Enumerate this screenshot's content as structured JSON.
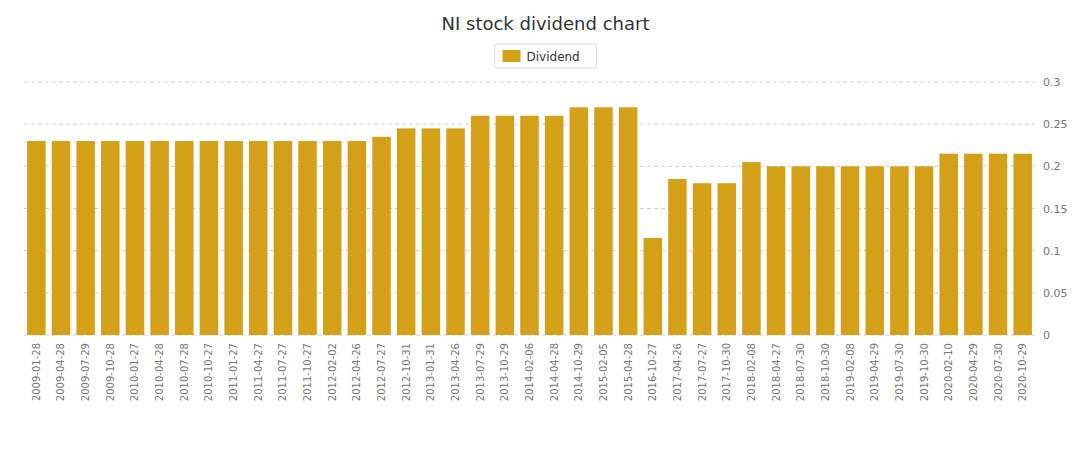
{
  "chart_data": {
    "type": "bar",
    "title": "NI stock dividend chart",
    "categories": [
      "2009-01-28",
      "2009-04-28",
      "2009-07-29",
      "2009-10-28",
      "2010-01-27",
      "2010-04-28",
      "2010-07-28",
      "2010-10-27",
      "2011-01-27",
      "2011-04-27",
      "2011-07-27",
      "2011-10-27",
      "2012-02-02",
      "2012-04-26",
      "2012-07-27",
      "2012-10-31",
      "2013-01-31",
      "2013-04-26",
      "2013-07-29",
      "2013-10-29",
      "2014-02-06",
      "2014-04-28",
      "2014-10-29",
      "2015-02-05",
      "2015-04-28",
      "2016-10-27",
      "2017-04-26",
      "2017-07-27",
      "2017-10-30",
      "2018-02-08",
      "2018-04-27",
      "2018-07-30",
      "2018-10-30",
      "2019-02-08",
      "2019-04-29",
      "2019-07-30",
      "2019-10-30",
      "2020-02-10",
      "2020-04-29",
      "2020-07-30",
      "2020-10-29"
    ],
    "series": [
      {
        "name": "Dividend",
        "color": "#D4A017",
        "values": [
          0.23,
          0.23,
          0.23,
          0.23,
          0.23,
          0.23,
          0.23,
          0.23,
          0.23,
          0.23,
          0.23,
          0.23,
          0.23,
          0.23,
          0.235,
          0.245,
          0.245,
          0.245,
          0.26,
          0.26,
          0.26,
          0.26,
          0.27,
          0.27,
          0.27,
          0.115,
          0.185,
          0.18,
          0.18,
          0.205,
          0.2,
          0.2,
          0.2,
          0.2,
          0.2,
          0.2,
          0.2,
          0.215,
          0.215,
          0.215,
          0.215
        ]
      }
    ],
    "ylim": [
      0,
      0.3
    ],
    "yticks": [
      0,
      0.05,
      0.1,
      0.15,
      0.2,
      0.25,
      0.3
    ],
    "grid": true,
    "legend": "top"
  }
}
